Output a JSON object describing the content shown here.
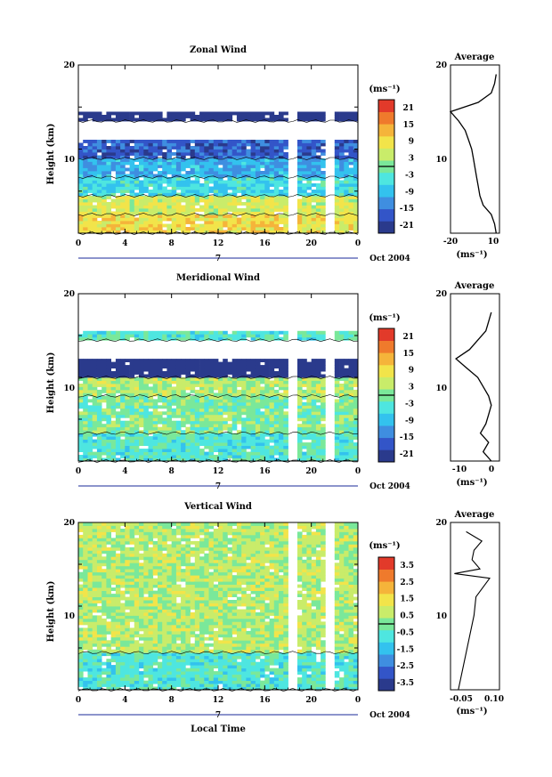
{
  "figure": {
    "panels": [
      {
        "title": "Zonal Wind",
        "ylabel": "Height (km)",
        "yticks": [
          "20",
          "10"
        ],
        "xticks": [
          "0",
          "4",
          "8",
          "12",
          "16",
          "20",
          "0"
        ],
        "date_label": "Oct 2004",
        "day_label": "7",
        "units_label": "(ms⁻¹)",
        "colorbar_ticks": [
          "21",
          "15",
          "9",
          "3",
          "-3",
          "-9",
          "-15",
          "-21"
        ],
        "avg_title": "Average",
        "avg_yticks": [
          "20",
          "10"
        ],
        "avg_xticks": [
          "-20",
          "10"
        ],
        "avg_xlabel": "(ms⁻¹)"
      },
      {
        "title": "Meridional Wind",
        "ylabel": "Height (km)",
        "yticks": [
          "20",
          "10"
        ],
        "xticks": [
          "0",
          "4",
          "8",
          "12",
          "16",
          "20",
          "0"
        ],
        "date_label": "Oct 2004",
        "day_label": "7",
        "units_label": "(ms⁻¹)",
        "colorbar_ticks": [
          "21",
          "15",
          "9",
          "3",
          "-3",
          "-9",
          "-15",
          "-21"
        ],
        "avg_title": "Average",
        "avg_yticks": [
          "20",
          "10"
        ],
        "avg_xticks": [
          "-10",
          "0"
        ],
        "avg_xlabel": "(ms⁻¹)"
      },
      {
        "title": "Vertical Wind",
        "ylabel": "Height (km)",
        "yticks": [
          "20",
          "10"
        ],
        "xticks": [
          "0",
          "4",
          "8",
          "12",
          "16",
          "20",
          "0"
        ],
        "date_label": "Oct 2004",
        "day_label": "7",
        "units_label": "(ms⁻¹)",
        "colorbar_ticks": [
          "3.5",
          "2.5",
          "1.5",
          "0.5",
          "-0.5",
          "-1.5",
          "-2.5",
          "-3.5"
        ],
        "avg_title": "Average",
        "avg_yticks": [
          "20",
          "10"
        ],
        "avg_xticks": [
          "-0.05",
          "0.10"
        ],
        "avg_xlabel": "(ms⁻¹)",
        "xlabel": "Local Time"
      }
    ],
    "colors": {
      "scale": [
        "#2a3a8c",
        "#3355c8",
        "#3f8ee0",
        "#33c2ee",
        "#4ee6e0",
        "#7ae89a",
        "#c9ec6a",
        "#f2e44a",
        "#f5b43a",
        "#ef7a2c",
        "#e23a2a"
      ],
      "missing": "#ffffff"
    }
  },
  "chart_data": [
    {
      "type": "heatmap",
      "title": "Zonal Wind",
      "xlabel": "",
      "ylabel": "Height (km)",
      "xlim": [
        0,
        24
      ],
      "ylim": [
        2,
        20
      ],
      "x_ticks": [
        0,
        4,
        8,
        12,
        16,
        20,
        24
      ],
      "colorbar_range": [
        -21,
        21
      ],
      "profile": {
        "title": "Average",
        "xlim": [
          -20,
          10
        ],
        "height": [
          2,
          3,
          4,
          5,
          6,
          7,
          8,
          9,
          10,
          11,
          12,
          13,
          14,
          15,
          16,
          17,
          18,
          19
        ],
        "value": [
          8,
          7,
          5,
          0,
          -2,
          -3,
          -4,
          -5,
          -6,
          -7,
          -9,
          -11,
          -15,
          -20,
          -3,
          5,
          7,
          8
        ]
      },
      "layers": [
        {
          "h": [
            2,
            4
          ],
          "value": 8
        },
        {
          "h": [
            4,
            6
          ],
          "value": 5
        },
        {
          "h": [
            6,
            8
          ],
          "value": -5
        },
        {
          "h": [
            8,
            10
          ],
          "value": -9
        },
        {
          "h": [
            10,
            12
          ],
          "value": -15
        },
        {
          "h": [
            14,
            15
          ],
          "value": -21
        }
      ]
    },
    {
      "type": "heatmap",
      "title": "Meridional Wind",
      "xlabel": "",
      "ylabel": "Height (km)",
      "xlim": [
        0,
        24
      ],
      "ylim": [
        2,
        20
      ],
      "x_ticks": [
        0,
        4,
        8,
        12,
        16,
        20,
        24
      ],
      "colorbar_range": [
        -21,
        21
      ],
      "profile": {
        "title": "Average",
        "xlim": [
          -15,
          3
        ],
        "height": [
          2,
          3,
          4,
          5,
          6,
          7,
          8,
          9,
          10,
          11,
          12,
          13,
          14,
          15,
          16,
          17,
          18
        ],
        "value": [
          0,
          -3,
          -1,
          -4,
          -2,
          -1,
          0,
          -1,
          -3,
          -5,
          -9,
          -13,
          -8,
          -5,
          -2,
          -1,
          0
        ]
      },
      "layers": [
        {
          "h": [
            2,
            5
          ],
          "value": -3
        },
        {
          "h": [
            5,
            9
          ],
          "value": 0
        },
        {
          "h": [
            9,
            11
          ],
          "value": 3
        },
        {
          "h": [
            11,
            13
          ],
          "value": -21
        },
        {
          "h": [
            15,
            16
          ],
          "value": -3
        }
      ]
    },
    {
      "type": "heatmap",
      "title": "Vertical Wind",
      "xlabel": "Local Time",
      "ylabel": "Height (km)",
      "xlim": [
        0,
        24
      ],
      "ylim": [
        2,
        20
      ],
      "x_ticks": [
        0,
        4,
        8,
        12,
        16,
        20,
        24
      ],
      "colorbar_range": [
        -3.5,
        3.5
      ],
      "profile": {
        "title": "Average",
        "xlim": [
          -0.1,
          0.15
        ],
        "height": [
          2,
          4,
          6,
          8,
          10,
          12,
          14,
          14.5,
          15,
          16,
          17,
          18,
          19
        ],
        "value": [
          -0.06,
          -0.04,
          -0.02,
          0.0,
          0.02,
          0.03,
          0.1,
          -0.08,
          0.05,
          0.01,
          0.02,
          0.06,
          -0.02
        ]
      },
      "layers": [
        {
          "h": [
            2,
            6
          ],
          "value": -0.5
        },
        {
          "h": [
            6,
            20
          ],
          "value": 0.5
        }
      ]
    }
  ]
}
